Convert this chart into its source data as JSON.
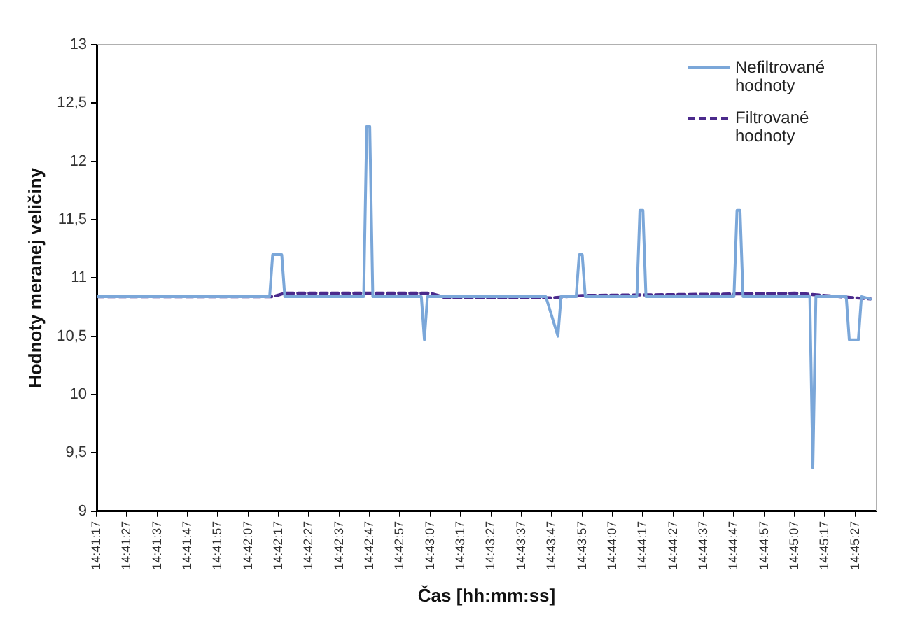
{
  "chart_data": {
    "type": "line",
    "xlabel": "Čas [hh:mm:ss]",
    "ylabel": "Hodnoty meranej veličiny",
    "xlim": [
      14.688056,
      14.759444
    ],
    "xticks": [
      {
        "value": 14.688056,
        "label": "14:41:17"
      },
      {
        "value": 14.690833,
        "label": "14:41:27"
      },
      {
        "value": 14.693611,
        "label": "14:41:37"
      },
      {
        "value": 14.696389,
        "label": "14:41:47"
      },
      {
        "value": 14.699167,
        "label": "14:41:57"
      },
      {
        "value": 14.701944,
        "label": "14:42:07"
      },
      {
        "value": 14.704722,
        "label": "14:42:17"
      },
      {
        "value": 14.7075,
        "label": "14:42:27"
      },
      {
        "value": 14.710278,
        "label": "14:42:37"
      },
      {
        "value": 14.713056,
        "label": "14:42:47"
      },
      {
        "value": 14.715833,
        "label": "14:42:57"
      },
      {
        "value": 14.718611,
        "label": "14:43:07"
      },
      {
        "value": 14.721389,
        "label": "14:43:17"
      },
      {
        "value": 14.724167,
        "label": "14:43:27"
      },
      {
        "value": 14.726944,
        "label": "14:43:37"
      },
      {
        "value": 14.729722,
        "label": "14:43:47"
      },
      {
        "value": 14.7325,
        "label": "14:43:57"
      },
      {
        "value": 14.735278,
        "label": "14:44:07"
      },
      {
        "value": 14.738056,
        "label": "14:44:17"
      },
      {
        "value": 14.740833,
        "label": "14:44:27"
      },
      {
        "value": 14.743611,
        "label": "14:44:37"
      },
      {
        "value": 14.746389,
        "label": "14:44:47"
      },
      {
        "value": 14.749167,
        "label": "14:44:57"
      },
      {
        "value": 14.751944,
        "label": "14:45:07"
      },
      {
        "value": 14.754722,
        "label": "14:45:17"
      },
      {
        "value": 14.7575,
        "label": "14:45:27"
      }
    ],
    "ylim": [
      9,
      13
    ],
    "yticks": [
      9,
      {
        "value": 9.5,
        "label": "9,5"
      },
      10,
      {
        "value": 10.5,
        "label": "10,5"
      },
      11,
      {
        "value": 11.5,
        "label": "11,5"
      },
      12,
      {
        "value": 12.5,
        "label": "12,5"
      },
      13
    ],
    "grid": false,
    "legend": "top right",
    "marker": "none",
    "series": [
      {
        "name": "Nefiltrované hodnoty",
        "color": "#7ba7d9",
        "line_style": "solid",
        "x": [
          14.688056,
          14.703889,
          14.704167,
          14.705,
          14.705278,
          14.7125,
          14.712778,
          14.713056,
          14.713333,
          14.717778,
          14.718056,
          14.718333,
          14.729167,
          14.730278,
          14.730556,
          14.731944,
          14.732222,
          14.7325,
          14.732778,
          14.7375,
          14.737778,
          14.738056,
          14.738333,
          14.746389,
          14.746667,
          14.746944,
          14.747222,
          14.753333,
          14.753611,
          14.753889,
          14.756667,
          14.756944,
          14.757778,
          14.758056,
          14.758889
        ],
        "values": [
          10.84,
          10.84,
          11.2,
          11.2,
          10.84,
          10.84,
          12.3,
          12.3,
          10.84,
          10.84,
          10.47,
          10.84,
          10.84,
          10.5,
          10.84,
          10.84,
          11.2,
          11.2,
          10.84,
          10.84,
          11.58,
          11.58,
          10.84,
          10.84,
          11.58,
          11.58,
          10.84,
          10.84,
          9.37,
          10.84,
          10.84,
          10.47,
          10.47,
          10.84,
          10.82
        ]
      },
      {
        "name": "Filtrované hodnoty",
        "color": "#4b2a8c",
        "line_style": "dashed",
        "x": [
          14.688056,
          14.704167,
          14.705278,
          14.718611,
          14.72,
          14.729722,
          14.7325,
          14.743611,
          14.751944,
          14.754722,
          14.758889
        ],
        "values": [
          10.84,
          10.84,
          10.87,
          10.87,
          10.83,
          10.83,
          10.85,
          10.86,
          10.87,
          10.85,
          10.82
        ]
      }
    ]
  }
}
